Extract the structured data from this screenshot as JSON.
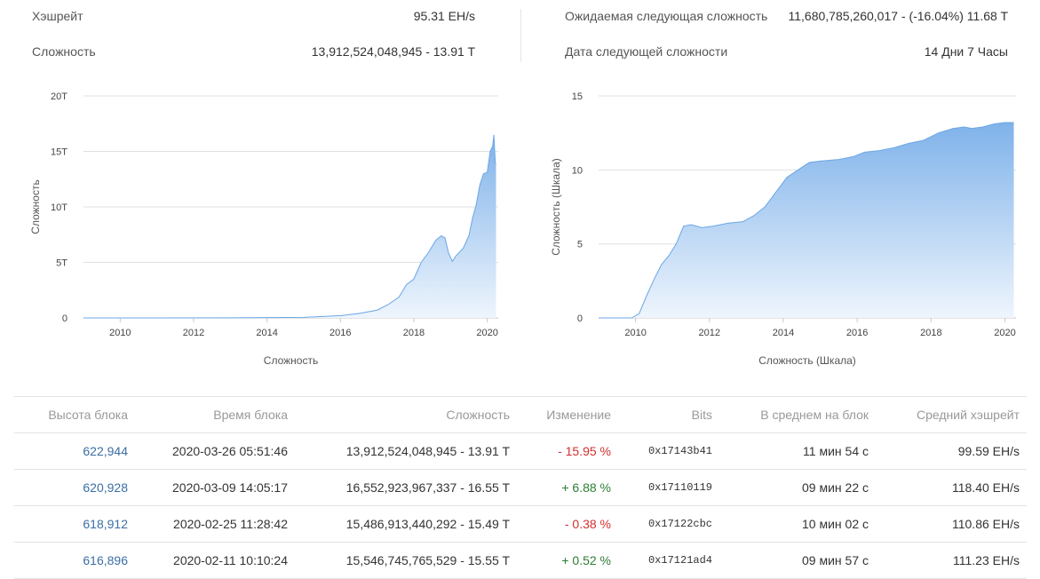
{
  "stats": {
    "hashrate_label": "Хэшрейт",
    "hashrate_value": "95.31 EH/s",
    "difficulty_label": "Сложность",
    "difficulty_value": "13,912,524,048,945 - 13.91 T",
    "next_difficulty_label": "Ожидаемая следующая сложность",
    "next_difficulty_value": "11,680,785,260,017 - (-16.04%) 11.68 T",
    "next_date_label": "Дата следующей сложности",
    "next_date_value": "14 Дни 7 Часы"
  },
  "colors": {
    "area_top": "#7fb2ea",
    "area_bottom": "#eef5fd",
    "line": "#6aa6e6",
    "link": "#3b6ea5",
    "negative": "#d32f2f",
    "positive": "#2e7d32"
  },
  "chart_data": [
    {
      "type": "area",
      "title": "",
      "xlabel": "Сложность",
      "ylabel": "Сложность",
      "x_ticks": [
        "2010",
        "2012",
        "2014",
        "2016",
        "2018",
        "2020"
      ],
      "y_ticks": [
        "0",
        "5T",
        "10T",
        "15T",
        "20T"
      ],
      "xlim": [
        2009.0,
        2020.3
      ],
      "ylim": [
        0,
        20
      ],
      "grid": true,
      "legend": "none",
      "x": [
        2009.0,
        2011.0,
        2013.0,
        2015.0,
        2016.0,
        2016.5,
        2017.0,
        2017.3,
        2017.6,
        2017.8,
        2018.0,
        2018.2,
        2018.4,
        2018.6,
        2018.75,
        2018.85,
        2018.95,
        2019.05,
        2019.15,
        2019.35,
        2019.5,
        2019.6,
        2019.7,
        2019.8,
        2019.9,
        2020.0,
        2020.08,
        2020.15,
        2020.18,
        2020.22,
        2020.24
      ],
      "y": [
        0,
        0.001,
        0.01,
        0.05,
        0.2,
        0.4,
        0.7,
        1.2,
        1.9,
        3.0,
        3.5,
        5.0,
        5.9,
        7.0,
        7.4,
        7.2,
        5.8,
        5.1,
        5.6,
        6.3,
        7.4,
        9.0,
        10.2,
        12.0,
        13.0,
        13.1,
        15.0,
        15.5,
        16.5,
        14.0,
        13.9
      ]
    },
    {
      "type": "area",
      "title": "",
      "xlabel": "Сложность (Шкала)",
      "ylabel": "Сложность (Шкала)",
      "x_ticks": [
        "2010",
        "2012",
        "2014",
        "2016",
        "2018",
        "2020"
      ],
      "y_ticks": [
        "0",
        "5",
        "10",
        "15"
      ],
      "xlim": [
        2009.0,
        2020.3
      ],
      "ylim": [
        0,
        15
      ],
      "grid": true,
      "legend": "none",
      "x": [
        2009.0,
        2009.9,
        2010.1,
        2010.3,
        2010.5,
        2010.7,
        2010.9,
        2011.1,
        2011.3,
        2011.5,
        2011.8,
        2012.1,
        2012.5,
        2012.9,
        2013.2,
        2013.5,
        2013.8,
        2014.1,
        2014.4,
        2014.7,
        2015.0,
        2015.5,
        2015.9,
        2016.2,
        2016.6,
        2017.0,
        2017.4,
        2017.8,
        2018.2,
        2018.6,
        2018.9,
        2019.1,
        2019.4,
        2019.7,
        2020.0,
        2020.24
      ],
      "y": [
        0,
        0,
        0.3,
        1.5,
        2.6,
        3.6,
        4.2,
        5.0,
        6.2,
        6.3,
        6.1,
        6.2,
        6.4,
        6.5,
        6.9,
        7.5,
        8.5,
        9.5,
        10.0,
        10.5,
        10.6,
        10.7,
        10.9,
        11.2,
        11.3,
        11.5,
        11.8,
        12.0,
        12.5,
        12.8,
        12.9,
        12.8,
        12.9,
        13.1,
        13.2,
        13.2
      ]
    }
  ],
  "table": {
    "headers": [
      "Высота блока",
      "Время блока",
      "Сложность",
      "Изменение",
      "Bits",
      "В среднем на блок",
      "Средний хэшрейт"
    ],
    "rows": [
      [
        "622,944",
        "2020-03-26 05:51:46",
        "13,912,524,048,945 - 13.91 T",
        "- 15.95 %",
        "0x17143b41",
        "11 мин 54 с",
        "99.59 EH/s"
      ],
      [
        "620,928",
        "2020-03-09 14:05:17",
        "16,552,923,967,337 - 16.55 T",
        "+ 6.88 %",
        "0x17110119",
        "09 мин 22 с",
        "118.40 EH/s"
      ],
      [
        "618,912",
        "2020-02-25 11:28:42",
        "15,486,913,440,292 - 15.49 T",
        "- 0.38 %",
        "0x17122cbc",
        "10 мин 02 с",
        "110.86 EH/s"
      ],
      [
        "616,896",
        "2020-02-11 10:10:24",
        "15,546,745,765,529 - 15.55 T",
        "+ 0.52 %",
        "0x17121ad4",
        "09 мин 57 с",
        "111.23 EH/s"
      ]
    ],
    "change_sign": [
      "negative",
      "positive",
      "negative",
      "positive"
    ]
  }
}
